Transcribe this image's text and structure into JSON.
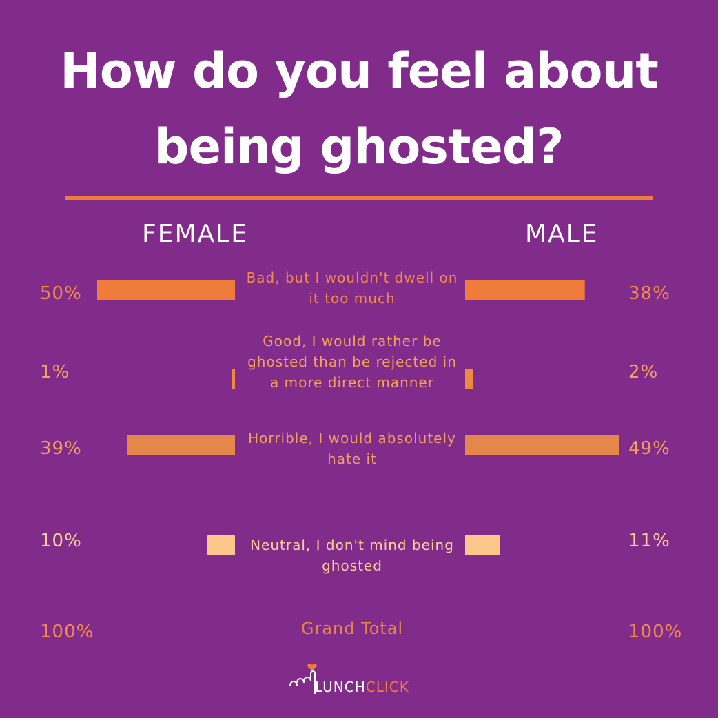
{
  "title_line1": "How do you feel about",
  "title_line2": "being ghosted?",
  "colors": {
    "background": "#812b8b",
    "rule": "#f07c3c",
    "series_colors": [
      "#f07c3c",
      "#ec8a3f",
      "#e4874a",
      "#fdc68a"
    ],
    "text_colors": [
      "#f08a4a",
      "#f4a25a",
      "#f0a05e",
      "#ffd09a"
    ]
  },
  "chart_data": {
    "type": "bar",
    "layout": "diverging-horizontal",
    "categories": [
      "Bad, but I wouldn't dwell on it too much",
      "Good, I would rather be ghosted than be rejected in a more direct manner",
      "Horrible, I would absolutely hate it",
      "Neutral, I don't mind being ghosted"
    ],
    "series": [
      {
        "name": "FEMALE",
        "side": "left",
        "values": [
          50,
          1,
          39,
          10
        ],
        "labels": [
          "50%",
          "1%",
          "39%",
          "10%"
        ]
      },
      {
        "name": "MALE",
        "side": "right",
        "values": [
          38,
          2,
          49,
          11
        ],
        "labels": [
          "38%",
          "2%",
          "49%",
          "11%"
        ]
      }
    ],
    "xlim": [
      0,
      50
    ],
    "total": {
      "label": "Grand Total",
      "female": "100%",
      "male": "100%"
    }
  },
  "category_lines": [
    [
      "Bad, but I wouldn't dwell on",
      "it too much"
    ],
    [
      "Good, I would rather be",
      "ghosted than be rejected in",
      "a more direct manner"
    ],
    [
      "Horrible, I would absolutely",
      "hate it"
    ],
    [
      "Neutral, I don't mind being",
      "ghosted"
    ]
  ],
  "logo": {
    "part1": "LUNCH",
    "part2": "CLICK"
  }
}
